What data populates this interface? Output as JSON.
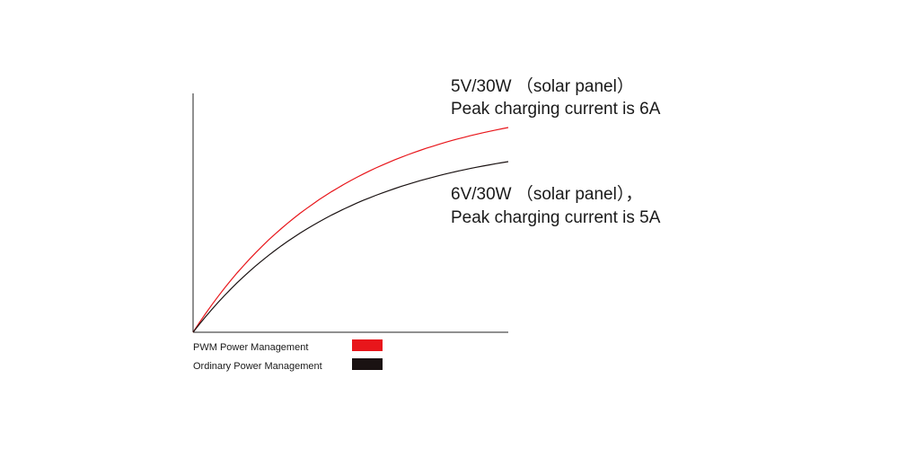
{
  "chart_data": {
    "type": "line",
    "title": "",
    "xlabel": "",
    "ylabel": "",
    "grid": false,
    "legend_position": "bottom-left",
    "series": [
      {
        "name": "PWM Power Management",
        "color": "#e8161b",
        "annotation": [
          "5V/30W （solar panel）",
          "Peak charging current is 6A"
        ],
        "peak_current_a": 6
      },
      {
        "name": "Ordinary Power  Management",
        "color": "#1a1212",
        "annotation": [
          "6V/30W （solar panel），",
          "Peak charging current is 5A"
        ],
        "peak_current_a": 5
      }
    ]
  }
}
